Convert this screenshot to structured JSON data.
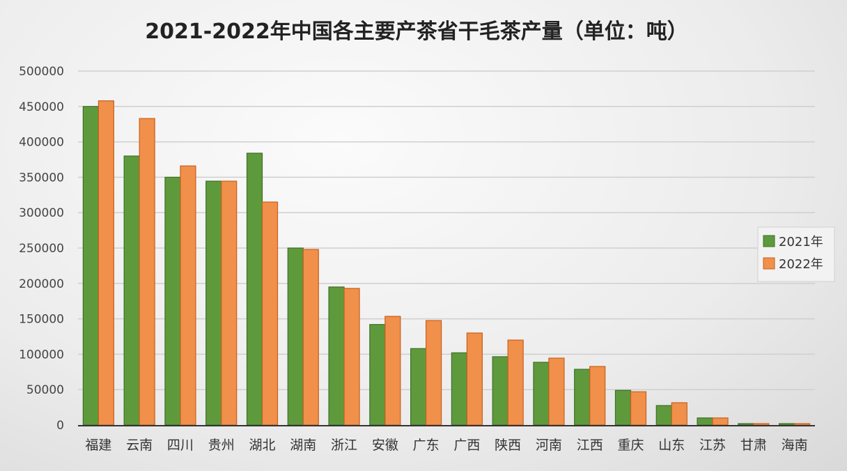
{
  "chart_data": {
    "type": "bar",
    "title": "2021-2022年中国各主要产茶省干毛茶产量（单位：吨）",
    "xlabel": "",
    "ylabel": "",
    "ylim": [
      0,
      500000
    ],
    "yticks": [
      0,
      50000,
      100000,
      150000,
      200000,
      250000,
      300000,
      350000,
      400000,
      450000,
      500000
    ],
    "grid": true,
    "legend_position": "right",
    "categories": [
      "福建",
      "云南",
      "四川",
      "贵州",
      "湖北",
      "湖南",
      "浙江",
      "安徽",
      "广东",
      "广西",
      "陕西",
      "河南",
      "江西",
      "重庆",
      "山东",
      "江苏",
      "甘肃",
      "海南"
    ],
    "series": [
      {
        "name": "2021年",
        "color": "#5e9a3c",
        "values": [
          450000,
          380000,
          350000,
          344500,
          384000,
          250000,
          195000,
          142000,
          108000,
          102000,
          96500,
          88600,
          78700,
          49000,
          27500,
          10000,
          2000,
          2000
        ]
      },
      {
        "name": "2022年",
        "color": "#f0904a",
        "values": [
          458000,
          433000,
          366000,
          344500,
          315000,
          248000,
          193000,
          153500,
          147600,
          130000,
          120000,
          94500,
          82700,
          47000,
          31500,
          10000,
          2000,
          2000
        ]
      }
    ]
  }
}
